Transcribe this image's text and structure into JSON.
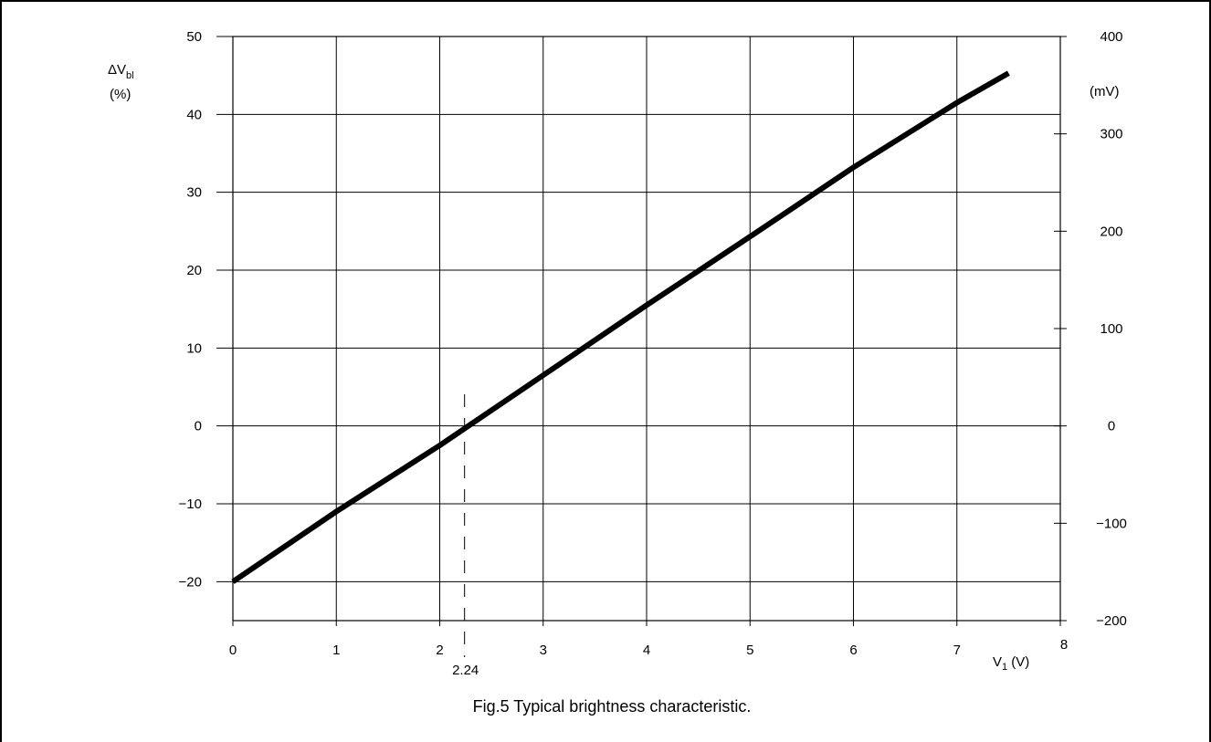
{
  "chart_data": {
    "type": "line",
    "caption": "Fig.5  Typical brightness characteristic.",
    "x_axis": {
      "label_main": "V",
      "label_sub": "1",
      "label_unit": " (V)",
      "range": [
        0,
        8
      ],
      "ticks": [
        0,
        1,
        2,
        3,
        4,
        5,
        6,
        7,
        8
      ],
      "tick_labels": [
        "0",
        "1",
        "2",
        "3",
        "4",
        "5",
        "6",
        "7",
        "8"
      ]
    },
    "y_axis_left": {
      "label_main": "ΔV",
      "label_sub": "bl",
      "label_unit": "(%)",
      "range": [
        -25,
        50
      ],
      "ticks": [
        -20,
        -10,
        0,
        10,
        20,
        30,
        40,
        50
      ],
      "tick_labels": [
        "−20",
        "−10",
        "0",
        "10",
        "20",
        "30",
        "40",
        "50"
      ]
    },
    "y_axis_right": {
      "label_unit": "(mV)",
      "range": [
        -200,
        400
      ],
      "ticks": [
        -200,
        -100,
        0,
        100,
        200,
        300,
        400
      ],
      "tick_labels": [
        "−200",
        "−100",
        "0",
        "100",
        "200",
        "300",
        "400"
      ]
    },
    "grid": true,
    "annotation": {
      "x": 2.24,
      "label": "2.24",
      "style": "dashed"
    },
    "series": [
      {
        "x": [
          0,
          1,
          2,
          3,
          4,
          5,
          6,
          7,
          7.5
        ],
        "y": [
          -20,
          -11,
          -2.5,
          6.5,
          15.5,
          24.3,
          33.2,
          41.5,
          45.3
        ]
      }
    ]
  }
}
